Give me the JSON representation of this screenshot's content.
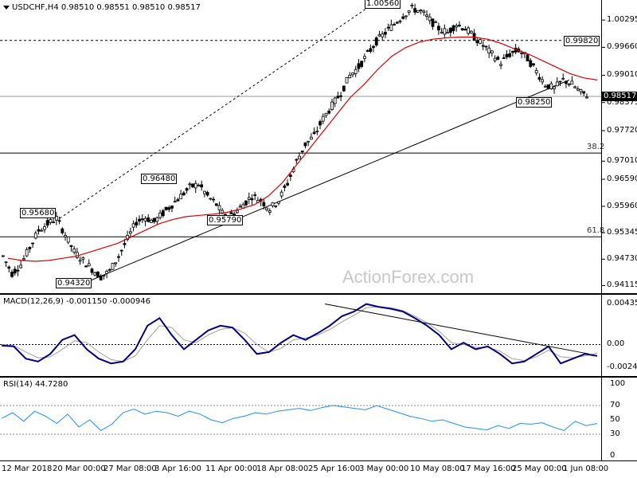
{
  "header": {
    "symbol": "USDCHF,H4",
    "ohlc": "0.98510 0.98551 0.98510 0.98517"
  },
  "watermark": "ActionForex.com",
  "macd_label": "MACD(12,26,9) -0.001150 -0.000946",
  "rsi_label": "RSI(14) 44.7280",
  "current_price": "0.98517",
  "colors": {
    "candle": "#000000",
    "ma": "#e00000",
    "macd": "#000080",
    "signal": "#a0a0a0",
    "rsi": "#1e90ff",
    "grid": "#000000"
  },
  "chart_data": [
    {
      "type": "candlestick",
      "yticks": [
        "1.00295",
        "0.99660",
        "0.99010",
        "0.98375",
        "0.97720",
        "0.97010",
        "0.96590",
        "0.95960",
        "0.95345",
        "0.94730",
        "0.94115"
      ],
      "ylim": [
        0.9405,
        1.0065
      ],
      "xticks": [
        "12 Mar 2018",
        "20 Mar 00:00",
        "27 Mar 08:00",
        "3 Apr 16:00",
        "11 Apr 00:00",
        "18 Apr 08:00",
        "25 Apr 16:00",
        "3 May 00:00",
        "10 May 08:00",
        "17 May 16:00",
        "25 May 00:00",
        "1 Jun 08:00"
      ],
      "close_path": [
        0.948,
        0.944,
        0.946,
        0.95,
        0.954,
        0.9555,
        0.9568,
        0.953,
        0.949,
        0.947,
        0.945,
        0.9432,
        0.9445,
        0.948,
        0.952,
        0.956,
        0.957,
        0.956,
        0.958,
        0.96,
        0.962,
        0.964,
        0.9648,
        0.962,
        0.96,
        0.957,
        0.9579,
        0.96,
        0.962,
        0.961,
        0.959,
        0.961,
        0.965,
        0.97,
        0.974,
        0.976,
        0.98,
        0.983,
        0.986,
        0.99,
        0.992,
        0.995,
        0.998,
        1.0,
        1.002,
        1.004,
        1.0056,
        1.005,
        1.003,
        1.001,
        1.0,
        1.002,
        1.001,
        0.999,
        0.997,
        0.995,
        0.993,
        0.995,
        0.996,
        0.994,
        0.991,
        0.988,
        0.987,
        0.989,
        0.988,
        0.986,
        0.9852
      ],
      "ma_path": [
        0.9475,
        0.947,
        0.9468,
        0.947,
        0.9475,
        0.948,
        0.949,
        0.95,
        0.951,
        0.9525,
        0.954,
        0.9555,
        0.9565,
        0.9572,
        0.9575,
        0.9578,
        0.9582,
        0.959,
        0.96,
        0.962,
        0.965,
        0.969,
        0.973,
        0.977,
        0.981,
        0.985,
        0.988,
        0.9915,
        0.9945,
        0.9965,
        0.9978,
        0.9985,
        0.9988,
        0.999,
        0.999,
        0.9985,
        0.9975,
        0.9962,
        0.995,
        0.9935,
        0.992,
        0.9905,
        0.9895,
        0.989
      ],
      "levels": [
        {
          "price": 0.9982,
          "label": "0.99820",
          "style": "dashed"
        },
        {
          "price": 0.98517,
          "label": "",
          "style": "solid-gray"
        },
        {
          "price": 0.972,
          "label": "38.2",
          "style": "solid"
        },
        {
          "price": 0.9525,
          "label": "61.8",
          "style": "solid"
        }
      ],
      "annotations": [
        {
          "text": "1.00560",
          "price": 1.0056
        },
        {
          "text": "0.99820",
          "price": 0.9982
        },
        {
          "text": "0.96480",
          "price": 0.9648
        },
        {
          "text": "0.95680",
          "price": 0.9568
        },
        {
          "text": "0.95790",
          "price": 0.9579
        },
        {
          "text": "0.94320",
          "price": 0.9432
        },
        {
          "text": "0.98250",
          "price": 0.9825
        }
      ]
    },
    {
      "type": "line",
      "name": "MACD(12,26,9)",
      "yticks": [
        "0.004351",
        "0.00",
        "-0.002448"
      ],
      "ylim": [
        -0.003,
        0.0046
      ],
      "macd": [
        -0.0001,
        -0.0002,
        -0.0015,
        -0.0018,
        -0.001,
        0.0005,
        0.001,
        -0.0005,
        -0.0015,
        -0.002,
        -0.0018,
        -0.0005,
        0.002,
        0.0028,
        0.001,
        -0.0005,
        0.0005,
        0.0015,
        0.002,
        0.0018,
        0.0005,
        -0.001,
        -0.0008,
        0.0002,
        0.001,
        0.0005,
        0.0012,
        0.002,
        0.003,
        0.0035,
        0.0043,
        0.004,
        0.0038,
        0.0035,
        0.0028,
        0.002,
        0.001,
        -0.0005,
        0.0002,
        -0.0005,
        -0.0002,
        -0.001,
        -0.002,
        -0.0018,
        -0.001,
        -0.0002,
        -0.002,
        -0.0015,
        -0.001,
        -0.0012
      ],
      "signal": [
        0.0,
        -0.0001,
        -0.0008,
        -0.0014,
        -0.0013,
        -0.0005,
        0.0004,
        0.0002,
        -0.0008,
        -0.0016,
        -0.0018,
        -0.0012,
        0.0005,
        0.002,
        0.0018,
        0.0005,
        0.0002,
        0.001,
        0.0016,
        0.0018,
        0.0012,
        0.0,
        -0.0008,
        -0.0004,
        0.0005,
        0.0007,
        0.001,
        0.0016,
        0.0024,
        0.0031,
        0.0039,
        0.004,
        0.0039,
        0.0036,
        0.003,
        0.0023,
        0.0014,
        0.0002,
        0.0,
        -0.0003,
        -0.0003,
        -0.0007,
        -0.0015,
        -0.0017,
        -0.0013,
        -0.0006,
        -0.0013,
        -0.0014,
        -0.0012,
        -0.0009
      ]
    },
    {
      "type": "line",
      "name": "RSI(14)",
      "yticks": [
        "100",
        "70",
        "50",
        "30",
        "0"
      ],
      "ylim": [
        0,
        100
      ],
      "values": [
        52,
        60,
        48,
        62,
        55,
        45,
        58,
        40,
        50,
        35,
        44,
        60,
        65,
        58,
        62,
        60,
        55,
        62,
        58,
        50,
        46,
        52,
        55,
        60,
        58,
        62,
        64,
        66,
        63,
        67,
        70,
        68,
        66,
        64,
        70,
        65,
        60,
        55,
        52,
        48,
        50,
        45,
        40,
        38,
        36,
        42,
        38,
        45,
        44,
        46,
        40,
        35,
        48,
        42,
        45
      ]
    }
  ]
}
